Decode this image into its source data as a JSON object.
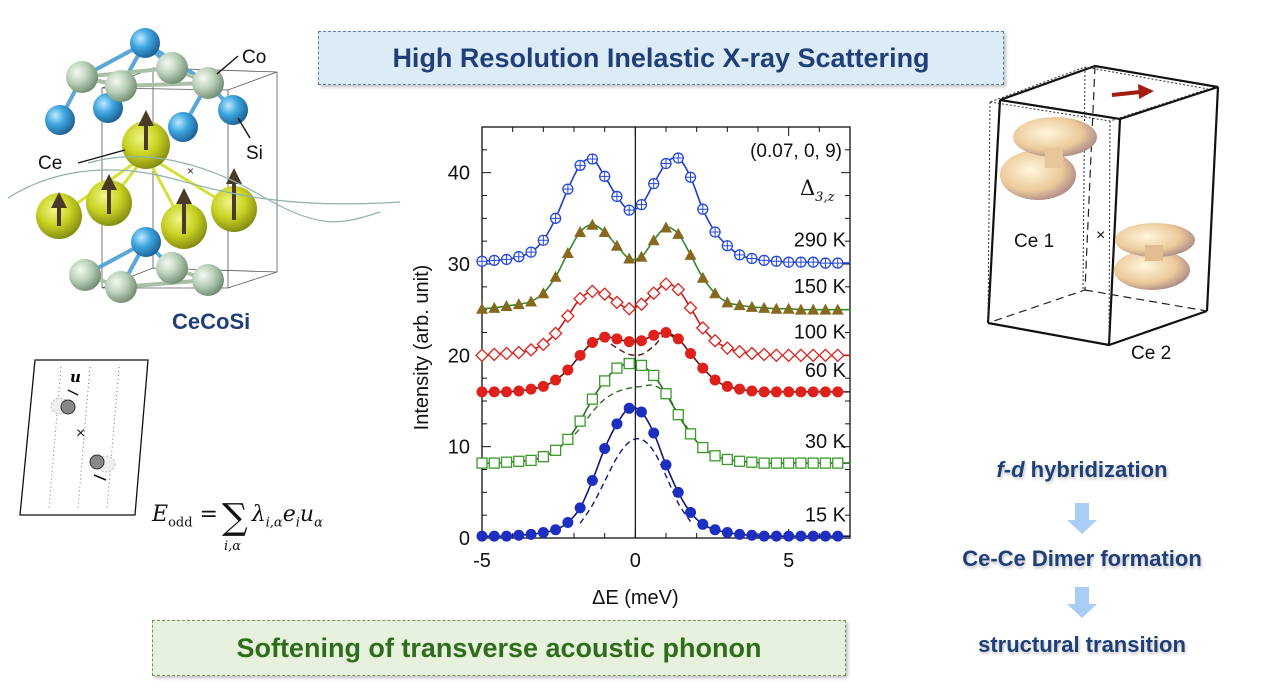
{
  "title": "High Resolution Inelastic X-ray Scattering",
  "bottom_caption": "Softening of transverse acoustic phonon",
  "crystal": {
    "labels": {
      "co": "Co",
      "ce": "Ce",
      "si": "Si"
    },
    "compound": "CeCoSi"
  },
  "displacement_diagram": {
    "vector_label": "u"
  },
  "formula": {
    "lhs": "E",
    "lhs_sub": "odd",
    "equals": "=",
    "sum_sub": "i,α",
    "lambda": "λ",
    "lambda_sub": "i,α",
    "e": "e",
    "e_sub": "i",
    "u": "u",
    "u_sub": "α"
  },
  "orbital_figure": {
    "ce1": "Ce 1",
    "ce2": "Ce 2"
  },
  "flow": {
    "step1_italic": "f-d",
    "step1_rest": " hybridization",
    "step2": "Ce-Ce Dimer formation",
    "step3": "structural transition"
  },
  "colors": {
    "title_text": "#203f78",
    "caption_text": "#2f6d1d",
    "arrow_fill": "#a9cdf5"
  },
  "chart_data": {
    "type": "scatter",
    "xlabel": "ΔE  (meV)",
    "ylabel": "Intensity  (arb. unit)",
    "xlim": [
      -5,
      7
    ],
    "ylim": [
      0,
      45
    ],
    "xticks": [
      -5,
      0,
      5
    ],
    "yticks": [
      0,
      10,
      20,
      30,
      40
    ],
    "xtick_labels": [
      "-5",
      "0",
      "5"
    ],
    "ytick_labels": [
      "0",
      "10",
      "20",
      "30",
      "40"
    ],
    "annotation_q": "(0.07, 0, 9)",
    "annotation_mode": "Δ",
    "annotation_mode_sub": "3,z",
    "grid": false,
    "x": [
      -5,
      -4.6,
      -4.2,
      -3.8,
      -3.4,
      -3.0,
      -2.6,
      -2.2,
      -1.8,
      -1.4,
      -1.0,
      -0.6,
      -0.2,
      0.2,
      0.6,
      1.0,
      1.4,
      1.8,
      2.2,
      2.6,
      3.0,
      3.4,
      3.8,
      4.2,
      4.6,
      5.0,
      5.4,
      5.8,
      6.2,
      6.6
    ],
    "series": [
      {
        "name": "290 K",
        "label_y": 32.7,
        "marker": "circle-plus-open",
        "marker_color": "#2447e0",
        "line_color": "#1f3fc8",
        "values": [
          30.3,
          30.4,
          30.5,
          30.8,
          31.3,
          32.6,
          35.0,
          38.2,
          40.8,
          41.5,
          39.6,
          37.4,
          35.9,
          36.5,
          38.8,
          41.0,
          41.6,
          39.5,
          36.0,
          33.5,
          32.0,
          31.0,
          30.6,
          30.4,
          30.3,
          30.2,
          30.2,
          30.2,
          30.1,
          30.1
        ]
      },
      {
        "name": "150 K",
        "label_y": 27.6,
        "marker": "triangle-filled",
        "marker_color": "#86691f",
        "line_color": "#2f8a2a",
        "values": [
          25.1,
          25.2,
          25.4,
          25.6,
          25.9,
          26.8,
          28.6,
          31.2,
          33.5,
          34.3,
          33.5,
          32.0,
          30.6,
          30.8,
          32.6,
          34.0,
          33.3,
          31.0,
          28.5,
          26.8,
          25.8,
          25.5,
          25.3,
          25.2,
          25.1,
          25.1,
          25.0,
          25.0,
          25.0,
          25.0
        ]
      },
      {
        "name": "100 K",
        "label_y": 22.6,
        "marker": "diamond-open",
        "marker_color": "#e0201a",
        "line_color": "#c41a14",
        "values": [
          20.0,
          20.1,
          20.2,
          20.3,
          20.6,
          21.2,
          22.4,
          24.3,
          26.2,
          27.0,
          26.7,
          25.8,
          25.1,
          25.6,
          26.8,
          27.8,
          27.2,
          25.2,
          23.0,
          21.6,
          20.8,
          20.4,
          20.2,
          20.1,
          20.0,
          20.0,
          20.0,
          20.0,
          20.0,
          20.0
        ]
      },
      {
        "name": "60 K",
        "label_y": 18.4,
        "marker": "circle-filled",
        "marker_color": "#e0201a",
        "line_color": "#5a1410",
        "values": [
          16.0,
          16.0,
          16.0,
          16.1,
          16.3,
          16.6,
          17.3,
          18.4,
          20.0,
          21.4,
          22.0,
          21.8,
          21.5,
          21.6,
          22.2,
          22.5,
          21.8,
          20.2,
          18.6,
          17.3,
          16.6,
          16.3,
          16.1,
          16.0,
          16.0,
          16.0,
          16.0,
          16.0,
          16.0,
          16.0
        ],
        "dashed": {
          "x": [
            -1.4,
            -1.0,
            -0.6,
            -0.2,
            0.2,
            0.6,
            1.0,
            1.4
          ],
          "values": [
            21.3,
            21.6,
            20.8,
            20.1,
            20.1,
            21.0,
            22.3,
            21.6
          ]
        }
      },
      {
        "name": "30 K",
        "label_y": 10.6,
        "marker": "square-open",
        "marker_color": "#3a9a2a",
        "line_color": "#2c6e22",
        "values": [
          8.2,
          8.2,
          8.3,
          8.4,
          8.5,
          8.9,
          9.6,
          10.8,
          12.8,
          15.2,
          17.2,
          18.6,
          19.1,
          18.9,
          17.8,
          15.8,
          13.5,
          11.4,
          9.9,
          9.0,
          8.6,
          8.4,
          8.3,
          8.2,
          8.2,
          8.2,
          8.2,
          8.2,
          8.2,
          8.2
        ],
        "dashed": {
          "x": [
            -2.2,
            -1.8,
            -1.4,
            -1.0,
            -0.6,
            -0.2,
            0.2,
            0.6,
            1.0,
            1.4,
            1.8
          ],
          "values": [
            10.6,
            12.0,
            13.8,
            15.2,
            16.0,
            16.4,
            16.6,
            16.7,
            15.8,
            13.6,
            11.5
          ]
        }
      },
      {
        "name": "15 K",
        "label_y": 2.6,
        "marker": "circle-filled",
        "marker_color": "#1c2fc0",
        "line_color": "#101a70",
        "values": [
          0.2,
          0.2,
          0.2,
          0.3,
          0.4,
          0.6,
          0.9,
          1.7,
          3.3,
          6.3,
          9.8,
          12.5,
          14.2,
          13.8,
          11.5,
          8.0,
          5.0,
          2.8,
          1.5,
          0.9,
          0.6,
          0.4,
          0.3,
          0.2,
          0.2,
          0.2,
          0.2,
          0.2,
          0.2,
          0.2
        ],
        "dashed": {
          "x": [
            -1.8,
            -1.4,
            -1.0,
            -0.6,
            -0.2,
            0.2,
            0.6,
            1.0,
            1.4,
            1.8
          ],
          "values": [
            1.6,
            3.6,
            6.2,
            8.8,
            10.5,
            10.8,
            9.5,
            6.8,
            3.8,
            1.8
          ]
        }
      }
    ]
  }
}
